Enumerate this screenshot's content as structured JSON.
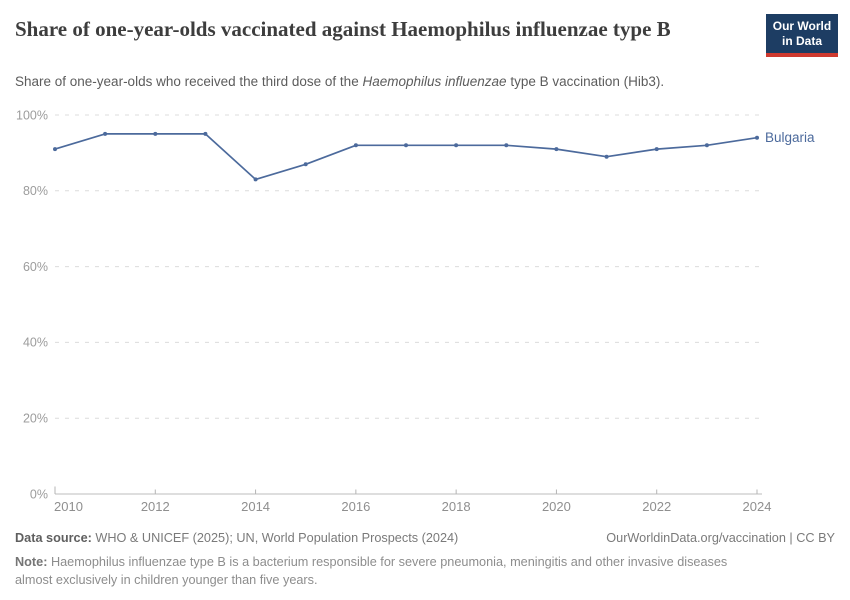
{
  "header": {
    "title": "Share of one-year-olds vaccinated against Haemophilus influenzae type B",
    "logo": {
      "line1": "Our World",
      "line2": "in Data"
    }
  },
  "subtitle": {
    "prefix": "Share of one-year-olds who received the third dose of the ",
    "italic": "Haemophilus influenzae",
    "suffix": " type B vaccination (Hib3)."
  },
  "chart_data": {
    "type": "line",
    "x": [
      2010,
      2011,
      2012,
      2013,
      2014,
      2015,
      2016,
      2017,
      2018,
      2019,
      2020,
      2021,
      2022,
      2023,
      2024
    ],
    "series": [
      {
        "name": "Bulgaria",
        "color": "#4C6A9C",
        "values": [
          91,
          95,
          95,
          95,
          83,
          87,
          92,
          92,
          92,
          92,
          91,
          89,
          91,
          92,
          94
        ]
      }
    ],
    "xlim": [
      2010,
      2024
    ],
    "ylim": [
      0,
      100
    ],
    "yticks": [
      {
        "value": 100,
        "label": "100%"
      },
      {
        "value": 80,
        "label": "80%"
      },
      {
        "value": 60,
        "label": "60%"
      },
      {
        "value": 40,
        "label": "40%"
      },
      {
        "value": 20,
        "label": "20%"
      },
      {
        "value": 0,
        "label": "0%"
      }
    ],
    "xticks": [
      {
        "value": 2010,
        "label": "2010"
      },
      {
        "value": 2012,
        "label": "2012"
      },
      {
        "value": 2014,
        "label": "2014"
      },
      {
        "value": 2016,
        "label": "2016"
      },
      {
        "value": 2018,
        "label": "2018"
      },
      {
        "value": 2020,
        "label": "2020"
      },
      {
        "value": 2022,
        "label": "2022"
      },
      {
        "value": 2024,
        "label": "2024"
      }
    ],
    "grid": "horizontal-dashed",
    "legend": "inline-end-label"
  },
  "footer": {
    "source_label": "Data source:",
    "source_text": " WHO & UNICEF (2025); UN, World Population Prospects (2024)",
    "credit": "OurWorldinData.org/vaccination | CC BY",
    "note_label": "Note:",
    "note_text": " Haemophilus influenzae type B is a bacterium responsible for severe pneumonia, meningitis and other invasive diseases almost exclusively in children younger than five years."
  },
  "colors": {
    "line": "#4C6A9C",
    "grid": "#dcdcdc",
    "axis": "#bdbdbd",
    "tick": "#b4b4b4",
    "y_label": "#9c9c9c",
    "x_label": "#8f8f8f",
    "logo_bg": "#1d3d63",
    "logo_accent": "#cf3a2f"
  }
}
